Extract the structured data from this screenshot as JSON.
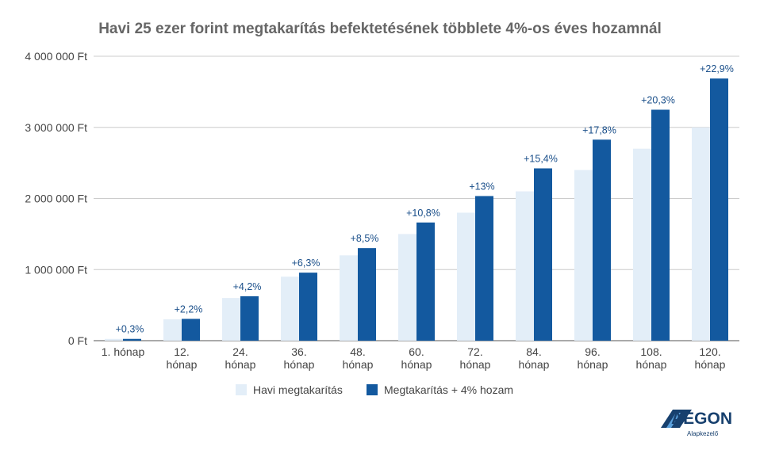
{
  "chart_data": {
    "type": "bar",
    "title": "Havi 25 ezer forint megtakarítás befektetésének többlete 4%-os éves hozamnál",
    "categories": [
      [
        "1. hónap"
      ],
      [
        "12.",
        "hónap"
      ],
      [
        "24.",
        "hónap"
      ],
      [
        "36.",
        "hónap"
      ],
      [
        "48.",
        "hónap"
      ],
      [
        "60.",
        "hónap"
      ],
      [
        "72.",
        "hónap"
      ],
      [
        "84.",
        "hónap"
      ],
      [
        "96.",
        "hónap"
      ],
      [
        "108.",
        "hónap"
      ],
      [
        "120.",
        "hónap"
      ]
    ],
    "series": [
      {
        "name": "Havi megtakarítás",
        "color": "#e3eef8",
        "values": [
          25000,
          300000,
          600000,
          900000,
          1200000,
          1500000,
          1800000,
          2100000,
          2400000,
          2700000,
          3000000
        ]
      },
      {
        "name": "Megtakarítás + 4% hozam",
        "color": "#13599f",
        "values": [
          25080,
          306600,
          625200,
          956700,
          1302000,
          1662000,
          2034000,
          2423400,
          2827200,
          3248100,
          3687000
        ]
      }
    ],
    "data_labels": [
      "+0,3%",
      "+2,2%",
      "+4,2%",
      "+6,3%",
      "+8,5%",
      "+10,8%",
      "+13%",
      "+15,4%",
      "+17,8%",
      "+20,3%",
      "+22,9%"
    ],
    "yticks": [
      "0 Ft",
      "1 000 000 Ft",
      "2 000 000 Ft",
      "3 000 000 Ft",
      "4 000 000 Ft"
    ],
    "ylim": [
      0,
      4000000
    ],
    "grid": true,
    "legend_position": "bottom",
    "label_color": "#1a4f8a"
  },
  "logo": {
    "name": "AEGON",
    "subtitle": "Alapkezelő",
    "color": "#17406e"
  }
}
